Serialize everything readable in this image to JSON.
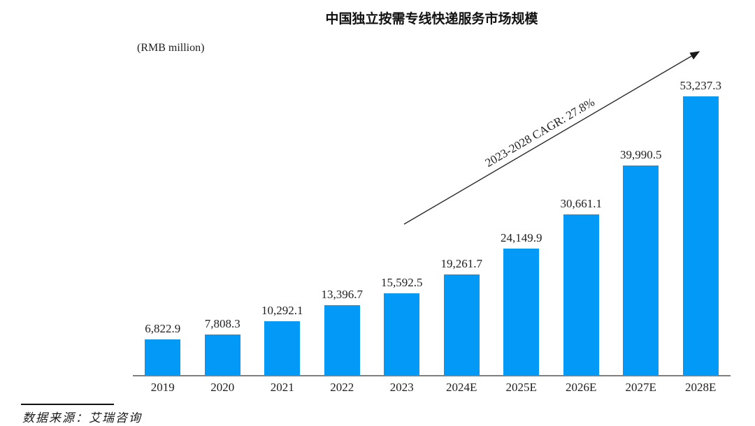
{
  "title": "中国独立按需专线快递服务市场规模",
  "unit_label": "(RMB million)",
  "annotation": "2023-2028 CAGR: 27.8%",
  "source": "数据来源：艾瑞咨询",
  "colors": {
    "bar": "#0399F7",
    "axis": "#7f7f7f",
    "arrow": "#2b2b2b",
    "text": "#1f1f1f"
  },
  "chart_data": {
    "type": "bar",
    "title": "中国独立按需专线快递服务市场规模",
    "ylabel": "(RMB million)",
    "xlabel": "",
    "categories": [
      "2019",
      "2020",
      "2021",
      "2022",
      "2023",
      "2024E",
      "2025E",
      "2026E",
      "2027E",
      "2028E"
    ],
    "values": [
      6822.9,
      7808.3,
      10292.1,
      13396.7,
      15592.5,
      19261.7,
      24149.9,
      30661.1,
      39990.5,
      53237.3
    ],
    "value_labels": [
      "6,822.9",
      "7,808.3",
      "10,292.1",
      "13,396.7",
      "15,592.5",
      "19,261.7",
      "24,149.9",
      "30,661.1",
      "39,990.5",
      "53,237.3"
    ],
    "annotation": "2023-2028 CAGR: 27.8%",
    "ylim": [
      0,
      53237.3
    ],
    "grid": false,
    "legend": null
  }
}
